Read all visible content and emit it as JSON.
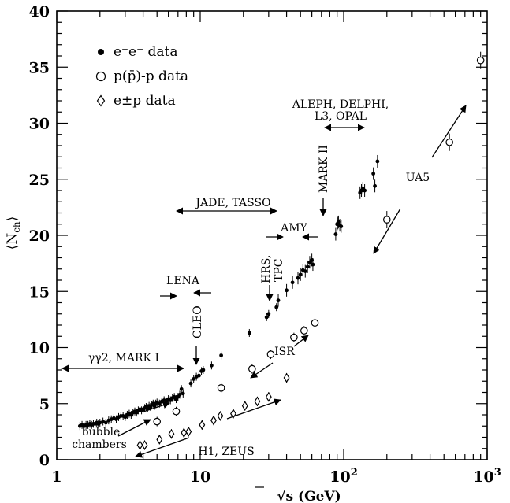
{
  "chart_data": {
    "type": "scatter",
    "xscale": "log",
    "xlim": [
      1,
      1000
    ],
    "ylim": [
      0,
      40
    ],
    "xlabel": "√s  (GeV)",
    "ylabel": "⟨N_ch⟩",
    "xticks": [
      1,
      10,
      100,
      1000
    ],
    "xtick_labels": [
      "1",
      "10",
      "10²",
      "10³"
    ],
    "yticks": [
      0,
      5,
      10,
      15,
      20,
      25,
      30,
      35,
      40
    ],
    "grid": false,
    "legend_position": "top-left",
    "series": [
      {
        "name": "e⁺e⁻ data",
        "marker": "filled-circle",
        "points": [
          {
            "x": 1.45,
            "y": 3.0
          },
          {
            "x": 1.5,
            "y": 3.1
          },
          {
            "x": 1.55,
            "y": 3.0
          },
          {
            "x": 1.6,
            "y": 3.1
          },
          {
            "x": 1.65,
            "y": 3.1
          },
          {
            "x": 1.7,
            "y": 3.2
          },
          {
            "x": 1.75,
            "y": 3.1
          },
          {
            "x": 1.8,
            "y": 3.2
          },
          {
            "x": 1.85,
            "y": 3.2
          },
          {
            "x": 1.9,
            "y": 3.3
          },
          {
            "x": 1.95,
            "y": 3.2
          },
          {
            "x": 2.0,
            "y": 3.3
          },
          {
            "x": 2.1,
            "y": 3.4
          },
          {
            "x": 2.2,
            "y": 3.3
          },
          {
            "x": 2.3,
            "y": 3.5
          },
          {
            "x": 2.4,
            "y": 3.6
          },
          {
            "x": 2.5,
            "y": 3.7
          },
          {
            "x": 2.6,
            "y": 3.6
          },
          {
            "x": 2.7,
            "y": 3.8
          },
          {
            "x": 2.8,
            "y": 3.9
          },
          {
            "x": 2.9,
            "y": 3.9
          },
          {
            "x": 3.0,
            "y": 3.8
          },
          {
            "x": 3.1,
            "y": 4.0
          },
          {
            "x": 3.2,
            "y": 4.1
          },
          {
            "x": 3.3,
            "y": 4.0
          },
          {
            "x": 3.4,
            "y": 4.2
          },
          {
            "x": 3.5,
            "y": 4.3
          },
          {
            "x": 3.6,
            "y": 4.2
          },
          {
            "x": 3.7,
            "y": 4.4
          },
          {
            "x": 3.8,
            "y": 4.5
          },
          {
            "x": 3.9,
            "y": 4.4
          },
          {
            "x": 4.0,
            "y": 4.5
          },
          {
            "x": 4.1,
            "y": 4.6
          },
          {
            "x": 4.2,
            "y": 4.7
          },
          {
            "x": 4.3,
            "y": 4.6
          },
          {
            "x": 4.4,
            "y": 4.8
          },
          {
            "x": 4.5,
            "y": 4.7
          },
          {
            "x": 4.6,
            "y": 4.9
          },
          {
            "x": 4.7,
            "y": 5.0
          },
          {
            "x": 4.8,
            "y": 4.8
          },
          {
            "x": 4.9,
            "y": 5.0
          },
          {
            "x": 5.0,
            "y": 5.1
          },
          {
            "x": 5.2,
            "y": 5.0
          },
          {
            "x": 5.4,
            "y": 5.2
          },
          {
            "x": 5.6,
            "y": 5.3
          },
          {
            "x": 5.8,
            "y": 5.2
          },
          {
            "x": 6.0,
            "y": 5.4
          },
          {
            "x": 6.2,
            "y": 5.3
          },
          {
            "x": 6.4,
            "y": 5.5
          },
          {
            "x": 6.6,
            "y": 5.6
          },
          {
            "x": 6.8,
            "y": 5.4
          },
          {
            "x": 7.0,
            "y": 5.6
          },
          {
            "x": 7.2,
            "y": 5.8
          },
          {
            "x": 7.4,
            "y": 6.3
          },
          {
            "x": 7.6,
            "y": 5.9
          },
          {
            "x": 8.6,
            "y": 6.8
          },
          {
            "x": 9.0,
            "y": 7.2
          },
          {
            "x": 9.4,
            "y": 7.4
          },
          {
            "x": 9.8,
            "y": 7.5
          },
          {
            "x": 10.2,
            "y": 7.9
          },
          {
            "x": 10.5,
            "y": 8.0
          },
          {
            "x": 12.0,
            "y": 8.4
          },
          {
            "x": 14.0,
            "y": 9.3
          },
          {
            "x": 22.0,
            "y": 11.3
          },
          {
            "x": 29.0,
            "y": 12.7
          },
          {
            "x": 30.0,
            "y": 13.0
          },
          {
            "x": 34.0,
            "y": 13.6
          },
          {
            "x": 35.0,
            "y": 14.2
          },
          {
            "x": 40.0,
            "y": 15.1
          },
          {
            "x": 44.0,
            "y": 15.8
          },
          {
            "x": 48.0,
            "y": 16.2
          },
          {
            "x": 50.0,
            "y": 16.5
          },
          {
            "x": 52.0,
            "y": 16.9
          },
          {
            "x": 54.0,
            "y": 16.8
          },
          {
            "x": 56.0,
            "y": 17.2
          },
          {
            "x": 58.0,
            "y": 17.6
          },
          {
            "x": 60.0,
            "y": 17.8
          },
          {
            "x": 61.0,
            "y": 17.4
          },
          {
            "x": 88.0,
            "y": 20.1
          },
          {
            "x": 90.0,
            "y": 21.0
          },
          {
            "x": 91.2,
            "y": 21.1
          },
          {
            "x": 92.0,
            "y": 21.2
          },
          {
            "x": 94.0,
            "y": 20.9
          },
          {
            "x": 96.0,
            "y": 20.8
          },
          {
            "x": 130.0,
            "y": 23.8
          },
          {
            "x": 133.0,
            "y": 24.0
          },
          {
            "x": 136.0,
            "y": 24.2
          },
          {
            "x": 140.0,
            "y": 24.0
          },
          {
            "x": 161.0,
            "y": 25.5
          },
          {
            "x": 165.0,
            "y": 24.4
          },
          {
            "x": 172.0,
            "y": 26.6
          }
        ]
      },
      {
        "name": "p(p̄)-p data",
        "marker": "open-circle",
        "points": [
          {
            "x": 5.0,
            "y": 3.4
          },
          {
            "x": 6.8,
            "y": 4.3
          },
          {
            "x": 14.0,
            "y": 6.4
          },
          {
            "x": 23.0,
            "y": 8.1
          },
          {
            "x": 31.0,
            "y": 9.4
          },
          {
            "x": 45.0,
            "y": 10.9
          },
          {
            "x": 53.0,
            "y": 11.5
          },
          {
            "x": 63.0,
            "y": 12.2
          },
          {
            "x": 200.0,
            "y": 21.4
          },
          {
            "x": 546.0,
            "y": 28.3
          },
          {
            "x": 900.0,
            "y": 35.6
          }
        ]
      },
      {
        "name": "e±p data",
        "marker": "open-diamond",
        "points": [
          {
            "x": 3.8,
            "y": 1.3
          },
          {
            "x": 4.1,
            "y": 1.3
          },
          {
            "x": 5.2,
            "y": 1.8
          },
          {
            "x": 6.3,
            "y": 2.3
          },
          {
            "x": 7.7,
            "y": 2.4
          },
          {
            "x": 8.3,
            "y": 2.5
          },
          {
            "x": 10.3,
            "y": 3.1
          },
          {
            "x": 12.4,
            "y": 3.5
          },
          {
            "x": 13.8,
            "y": 3.9
          },
          {
            "x": 17.0,
            "y": 4.1
          },
          {
            "x": 20.5,
            "y": 4.8
          },
          {
            "x": 25.0,
            "y": 5.2
          },
          {
            "x": 30.0,
            "y": 5.6
          },
          {
            "x": 40.0,
            "y": 7.3
          }
        ]
      }
    ],
    "annotations": [
      "γγ2, MARK I",
      "LENA",
      "CLEO",
      "JADE, TASSO",
      "HRS,",
      "TPC",
      "AMY",
      "MARK II",
      "ALEPH, DELPHI,",
      "L3, OPAL",
      "UA5",
      "ISR",
      "bubble",
      "chambers",
      "H1, ZEUS"
    ]
  }
}
